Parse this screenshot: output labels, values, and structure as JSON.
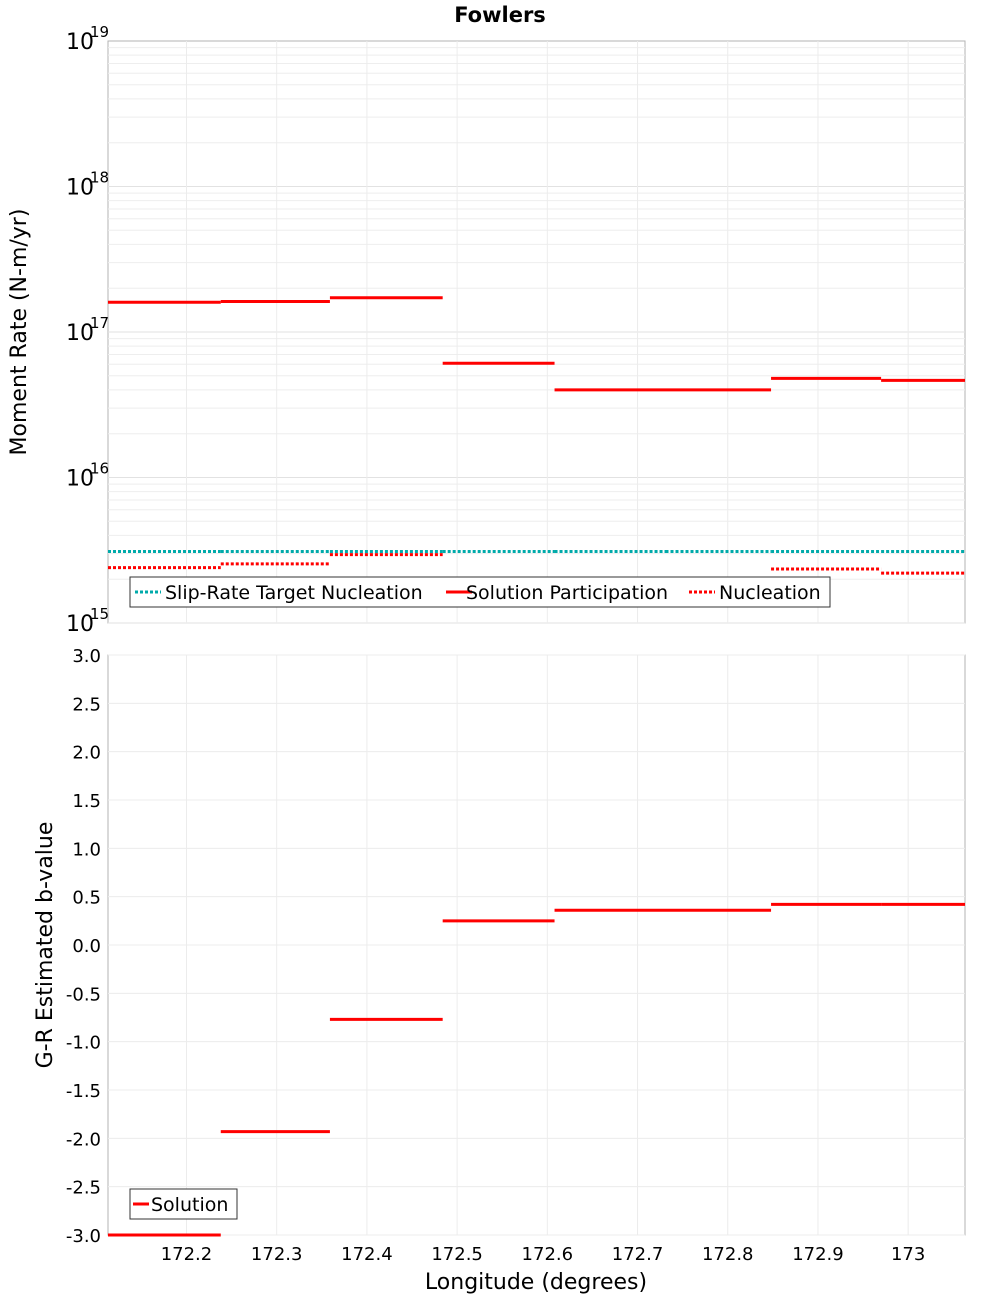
{
  "chart_data": [
    {
      "type": "line",
      "title": "Fowlers",
      "ylabel": "Moment Rate (N-m/yr)",
      "xlabel": "",
      "yscale": "log",
      "ylim": [
        1000000000000000.0,
        1e+19
      ],
      "xlim": [
        172.113,
        173.063
      ],
      "grid": true,
      "legend_position": "bottom-left",
      "y_ticks": [
        {
          "base": "10",
          "exp": "15"
        },
        {
          "base": "10",
          "exp": "16"
        },
        {
          "base": "10",
          "exp": "17"
        },
        {
          "base": "10",
          "exp": "18"
        },
        {
          "base": "10",
          "exp": "19"
        }
      ],
      "bins": [
        [
          172.113,
          172.238
        ],
        [
          172.238,
          172.359
        ],
        [
          172.359,
          172.484
        ],
        [
          172.484,
          172.608
        ],
        [
          172.608,
          172.731
        ],
        [
          172.731,
          172.848
        ],
        [
          172.848,
          172.97
        ],
        [
          172.97,
          173.063
        ]
      ],
      "series": [
        {
          "name": "Slip-Rate Target Nucleation",
          "color": "#00aaaa",
          "style": "dotted",
          "values": [
            3100000000000000.0,
            3100000000000000.0,
            3100000000000000.0,
            3100000000000000.0,
            3100000000000000.0,
            3100000000000000.0,
            3100000000000000.0,
            3100000000000000.0
          ]
        },
        {
          "name": "Solution Participation",
          "color": "#ff0000",
          "style": "solid",
          "values": [
            1.6e+17,
            1.62e+17,
            1.72e+17,
            6.1e+16,
            4e+16,
            4e+16,
            4.8e+16,
            4.65e+16
          ]
        },
        {
          "name": "Nucleation",
          "color": "#ff0000",
          "style": "dotted",
          "values": [
            2400000000000000.0,
            2550000000000000.0,
            2950000000000000.0,
            1900000000000000.0,
            1830000000000000.0,
            1830000000000000.0,
            2350000000000000.0,
            2200000000000000.0
          ]
        },
        {
          "name": "",
          "color": "#ff9999",
          "style": "dotted",
          "values": [
            null,
            null,
            null,
            1920000000000000.0,
            1870000000000000.0,
            1850000000000000.0,
            null,
            null
          ]
        }
      ]
    },
    {
      "type": "line",
      "title": "",
      "ylabel": "G-R Estimated b-value",
      "xlabel": "Longitude (degrees)",
      "yscale": "linear",
      "ylim": [
        -3.0,
        3.0
      ],
      "xlim": [
        172.113,
        173.063
      ],
      "grid": true,
      "legend_position": "bottom-left",
      "y_ticks": [
        "3.0",
        "2.5",
        "2.0",
        "1.5",
        "1.0",
        "0.5",
        "0.0",
        "-0.5",
        "-1.0",
        "-1.5",
        "-2.0",
        "-2.5",
        "-3.0"
      ],
      "x_ticks": [
        "172.2",
        "172.3",
        "172.4",
        "172.5",
        "172.6",
        "172.7",
        "172.8",
        "172.9",
        "173"
      ],
      "bins": [
        [
          172.113,
          172.238
        ],
        [
          172.238,
          172.359
        ],
        [
          172.359,
          172.484
        ],
        [
          172.484,
          172.608
        ],
        [
          172.608,
          172.731
        ],
        [
          172.731,
          172.848
        ],
        [
          172.848,
          172.97
        ],
        [
          172.97,
          173.063
        ]
      ],
      "series": [
        {
          "name": "Solution",
          "color": "#ff0000",
          "style": "solid",
          "values": [
            -3.0,
            -1.93,
            -0.77,
            0.25,
            0.36,
            0.36,
            0.42,
            0.42
          ]
        }
      ]
    }
  ]
}
